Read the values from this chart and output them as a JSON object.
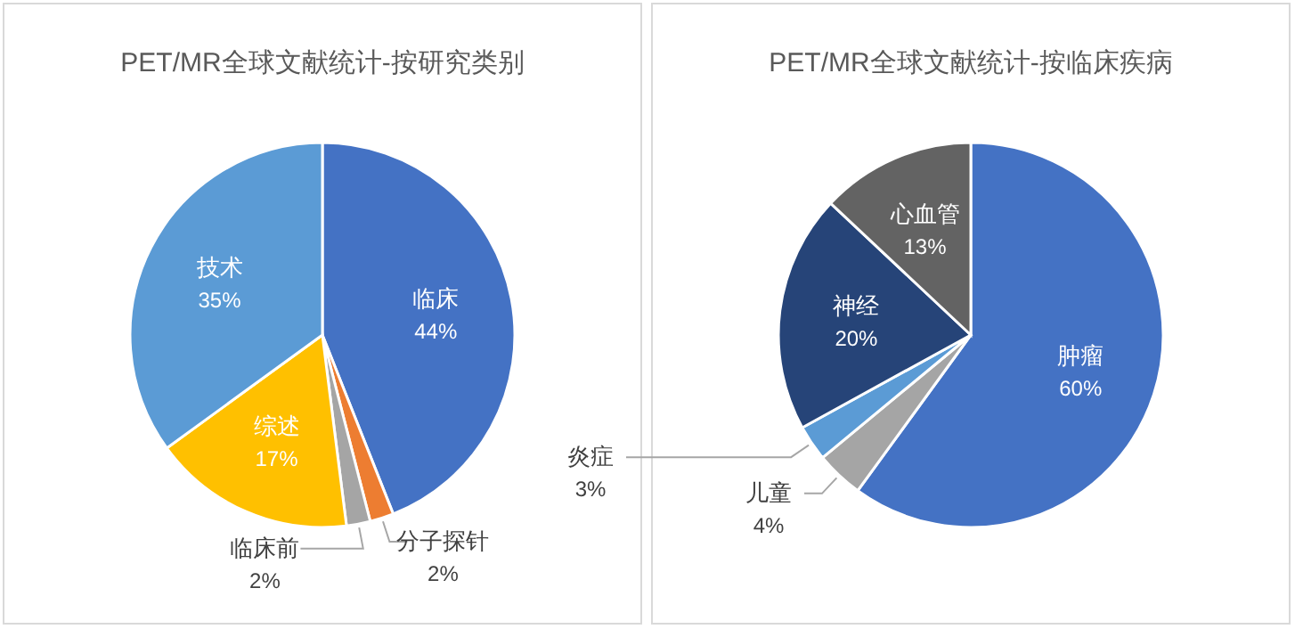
{
  "chart_data": [
    {
      "type": "pie",
      "title": "PET/MR全球文献统计-按研究类别",
      "categories": [
        "临床",
        "分子探针",
        "临床前",
        "综述",
        "技术"
      ],
      "values": [
        44,
        2,
        2,
        17,
        35
      ],
      "value_labels": [
        "44%",
        "2%",
        "2%",
        "17%",
        "35%"
      ],
      "colors": [
        "#4472c4",
        "#ed7d31",
        "#a5a5a5",
        "#ffc000",
        "#5b9bd5"
      ]
    },
    {
      "type": "pie",
      "title": "PET/MR全球文献统计-按临床疾病",
      "categories": [
        "肿瘤",
        "儿童",
        "炎症",
        "神经",
        "心血管"
      ],
      "values": [
        60,
        4,
        3,
        20,
        13
      ],
      "value_labels": [
        "60%",
        "4%",
        "3%",
        "20%",
        "13%"
      ],
      "colors": [
        "#4472c4",
        "#a5a5a5",
        "#5b9bd5",
        "#264478",
        "#636363"
      ]
    }
  ]
}
